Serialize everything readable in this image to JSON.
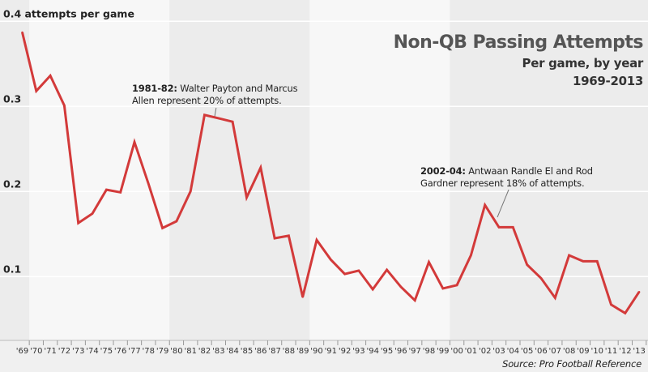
{
  "title": {
    "main": "Non-QB Passing Attempts",
    "sub": "Per game, by year",
    "years": "1969-2013"
  },
  "source": "Source: Pro Football Reference",
  "annotations": [
    {
      "label": "1981-82:",
      "line1": "Walter Payton and Marcus",
      "line2": "Allen represent 20% of attempts.",
      "year": 1983
    },
    {
      "label": "2002-04:",
      "line1": "Antwaan Randle El and Rod",
      "line2": "Gardner represent 18% of attempts.",
      "year": 2003
    }
  ],
  "colors": {
    "line": "#d33a3a",
    "grid": "#ffffff",
    "band_light": "#f7f7f7",
    "band_dark": "#ececec",
    "text": "#222222"
  },
  "chart_data": {
    "type": "line",
    "title": "Non-QB Passing Attempts",
    "subtitle": "Per game, by year",
    "ylabel": "0.4 attempts per game",
    "ylim": [
      0.025,
      0.425
    ],
    "yticks": [
      0.1,
      0.2,
      0.3,
      0.4
    ],
    "ytick_labels": [
      "0.1",
      "0.2",
      "0.3",
      "0.4 attempts per game"
    ],
    "x": [
      1969,
      1970,
      1971,
      1972,
      1973,
      1974,
      1975,
      1976,
      1977,
      1978,
      1979,
      1980,
      1981,
      1982,
      1983,
      1984,
      1985,
      1986,
      1987,
      1988,
      1989,
      1990,
      1991,
      1992,
      1993,
      1994,
      1995,
      1996,
      1997,
      1998,
      1999,
      2000,
      2001,
      2002,
      2003,
      2004,
      2005,
      2006,
      2007,
      2008,
      2009,
      2010,
      2011,
      2012,
      2013
    ],
    "xtick_labels": [
      "'69",
      "'70",
      "'71",
      "'72",
      "'73",
      "'74",
      "'75",
      "'76",
      "'77",
      "'78",
      "'79",
      "'80",
      "'81",
      "'82",
      "'83",
      "'84",
      "'85",
      "'86",
      "'87",
      "'88",
      "'89",
      "'90",
      "'91",
      "'92",
      "'93",
      "'94",
      "'95",
      "'96",
      "'97",
      "'98",
      "'99",
      "'00",
      "'01",
      "'02",
      "'03",
      "'04",
      "'05",
      "'06",
      "'07",
      "'08",
      "'09",
      "'10",
      "'11",
      "'12",
      "'13"
    ],
    "series": [
      {
        "values": [
          0.387,
          0.318,
          0.336,
          0.301,
          0.163,
          0.174,
          0.202,
          0.199,
          0.258,
          0.209,
          0.157,
          0.165,
          0.2,
          0.29,
          0.286,
          0.282,
          0.193,
          0.228,
          0.145,
          0.148,
          0.076,
          0.143,
          0.12,
          0.103,
          0.107,
          0.085,
          0.108,
          0.088,
          0.072,
          0.117,
          0.086,
          0.09,
          0.125,
          0.184,
          0.158,
          0.158,
          0.114,
          0.098,
          0.075,
          0.125,
          0.118,
          0.118,
          0.067,
          0.057,
          0.082
        ]
      }
    ],
    "grid": true
  }
}
